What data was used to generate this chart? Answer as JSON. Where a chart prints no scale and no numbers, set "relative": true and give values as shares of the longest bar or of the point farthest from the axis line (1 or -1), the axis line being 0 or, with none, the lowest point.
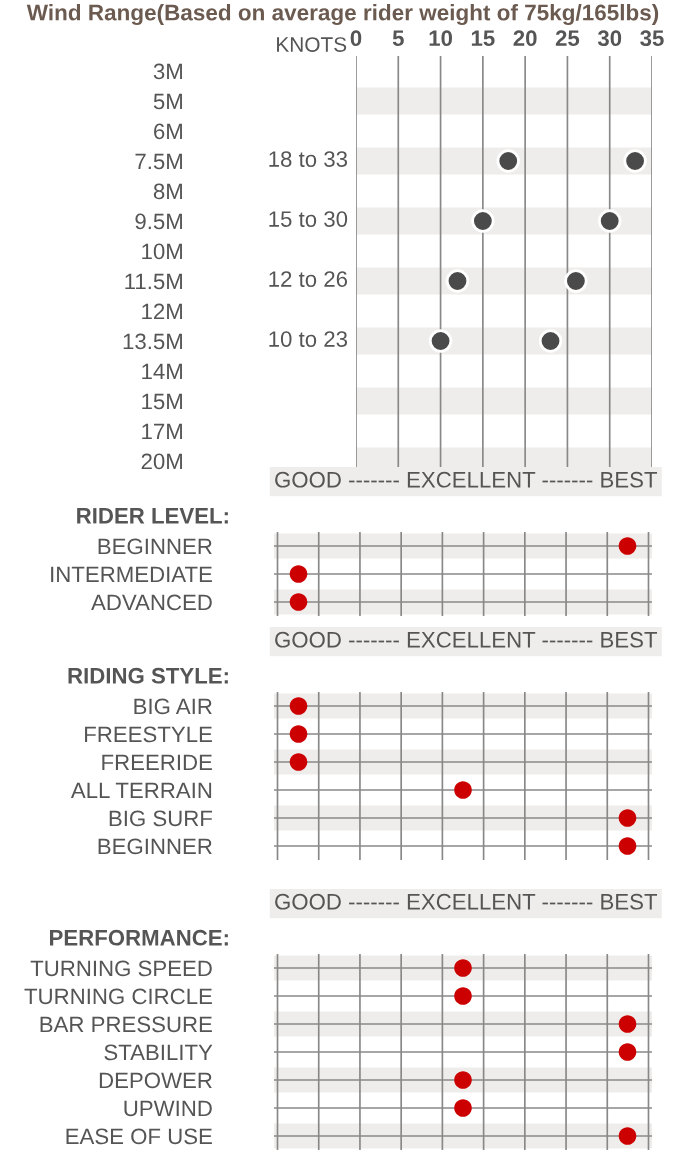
{
  "chart_data": [
    {
      "type": "scatter",
      "orientation": "horizontal",
      "title": "Wind Range(Based on average rider weight of 75kg/165lbs)",
      "categories": [
        "3M",
        "5M",
        "6M",
        "7.5M",
        "8M",
        "9.5M",
        "10M",
        "11.5M",
        "12M",
        "13.5M",
        "14M",
        "15M",
        "17M",
        "20M"
      ],
      "series": [
        {
          "color": "#4a4a4a",
          "axis": "x2",
          "values": [
            null,
            null,
            null,
            18,
            null,
            15,
            null,
            12,
            null,
            10,
            null,
            null,
            null,
            null
          ]
        },
        {
          "color": "#4a4a4a",
          "axis": "x2",
          "values": [
            null,
            null,
            null,
            33,
            null,
            30,
            null,
            26,
            null,
            23,
            null,
            null,
            null,
            null
          ]
        }
      ],
      "annotations": [
        "18 to 33",
        "15 to 30",
        "12 to 26",
        "10 to 23"
      ],
      "marker": "circle",
      "x2lim": [
        0,
        35
      ],
      "x2ticks": [
        0,
        5,
        10,
        15,
        20,
        25,
        30,
        35
      ],
      "x2label": "KNOTS",
      "grid": "x"
    },
    {
      "type": "scatter",
      "orientation": "horizontal",
      "relative": true,
      "title": "RIDER LEVEL:",
      "xlabel": "GOOD ------- EXCELLENT ------- BEST",
      "categories": [
        "BEGINNER",
        "INTERMEDIATE",
        "ADVANCED"
      ],
      "values": [
        1,
        0.06,
        0.06
      ],
      "color": "#cc0000",
      "marker": "circle",
      "grid": true
    },
    {
      "type": "scatter",
      "orientation": "horizontal",
      "relative": true,
      "title": "RIDING STYLE:",
      "xlabel": "GOOD ------- EXCELLENT ------- BEST",
      "categories": [
        "BIG AIR",
        "FREESTYLE",
        "FREERIDE",
        "ALL TERRAIN",
        "BIG SURF",
        "BEGINNER"
      ],
      "values": [
        0.06,
        0.06,
        0.06,
        0.53,
        1,
        1
      ],
      "color": "#cc0000",
      "marker": "circle",
      "grid": true
    },
    {
      "type": "scatter",
      "orientation": "horizontal",
      "relative": true,
      "title": "PERFORMANCE:",
      "xlabel": "GOOD ------- EXCELLENT ------- BEST",
      "categories": [
        "TURNING SPEED",
        "TURNING CIRCLE",
        "BAR PRESSURE",
        "STABILITY",
        "DEPOWER",
        "UPWIND",
        "EASE OF USE"
      ],
      "values": [
        0.53,
        0.53,
        1,
        1,
        0.53,
        0.53,
        1
      ],
      "color": "#cc0000",
      "marker": "circle",
      "grid": true
    }
  ]
}
